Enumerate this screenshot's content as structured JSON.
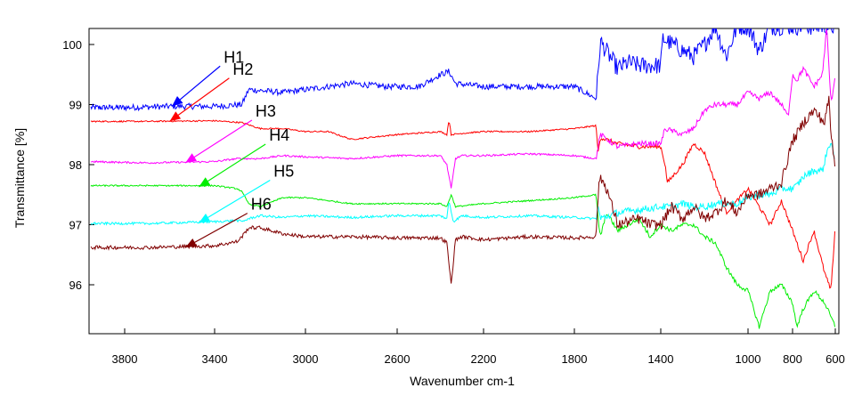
{
  "chart_data": {
    "type": "line",
    "title": "",
    "xlabel": "Wavenumber cm-1",
    "ylabel": "Transmittance [%]",
    "xlim": [
      4000,
      600
    ],
    "ylim": [
      95.2,
      100.3
    ],
    "x_reversed": true,
    "x_ticks": [
      3800,
      3400,
      3000,
      2600,
      2200,
      1800,
      1400,
      1000,
      800,
      600
    ],
    "y_ticks": [
      96,
      97,
      98,
      99,
      100
    ],
    "grid": false,
    "legend": "none",
    "series": [
      {
        "name": "H1",
        "color": "#0000ff",
        "noise": 0.05,
        "x": [
          3990,
          3800,
          3600,
          3400,
          3280,
          3250,
          3100,
          3000,
          2800,
          2650,
          2500,
          2400,
          2360,
          2330,
          2200,
          2000,
          1800,
          1700,
          1690,
          1680,
          1600,
          1550,
          1500,
          1450,
          1400,
          1390,
          1300,
          1250,
          1200,
          1150,
          1100,
          1050,
          1000,
          950,
          900,
          850,
          780,
          700,
          650,
          620,
          600
        ],
        "y": [
          98.95,
          98.95,
          98.97,
          98.97,
          99.0,
          99.25,
          99.2,
          99.25,
          99.35,
          99.3,
          99.3,
          99.5,
          99.55,
          99.35,
          99.3,
          99.3,
          99.3,
          99.1,
          99.5,
          100.05,
          99.6,
          99.7,
          99.65,
          99.65,
          99.65,
          100.1,
          99.9,
          99.8,
          100.0,
          100.3,
          99.8,
          100.3,
          100.3,
          99.9,
          100.3,
          100.3,
          100.3,
          100.3,
          100.3,
          100.3,
          100.3
        ]
      },
      {
        "name": "H2",
        "color": "#ff0000",
        "noise": 0.012,
        "x": [
          3990,
          3700,
          3400,
          3280,
          3200,
          3100,
          3000,
          2900,
          2800,
          2600,
          2400,
          2370,
          2360,
          2350,
          2300,
          2200,
          2000,
          1800,
          1700,
          1690,
          1680,
          1600,
          1500,
          1400,
          1380,
          1370,
          1300,
          1250,
          1200,
          1150,
          1100,
          1000,
          950,
          900,
          850,
          800,
          780,
          750,
          700,
          650,
          620,
          600
        ],
        "y": [
          98.72,
          98.72,
          98.73,
          98.7,
          98.6,
          98.6,
          98.55,
          98.55,
          98.42,
          98.5,
          98.55,
          98.5,
          98.75,
          98.5,
          98.52,
          98.55,
          98.55,
          98.6,
          98.65,
          98.2,
          98.45,
          98.35,
          98.3,
          98.3,
          98.0,
          97.7,
          98.0,
          98.35,
          98.2,
          97.7,
          97.2,
          97.6,
          97.3,
          97.0,
          97.4,
          96.9,
          96.7,
          96.4,
          96.9,
          96.2,
          95.9,
          97.0
        ]
      },
      {
        "name": "H3",
        "color": "#ff00ff",
        "noise": 0.015,
        "x": [
          3990,
          3700,
          3400,
          3300,
          3200,
          3100,
          3000,
          2800,
          2600,
          2400,
          2370,
          2350,
          2330,
          2300,
          2200,
          2000,
          1800,
          1700,
          1680,
          1600,
          1500,
          1400,
          1380,
          1300,
          1250,
          1200,
          1150,
          1100,
          1050,
          1000,
          950,
          900,
          850,
          820,
          800,
          780,
          750,
          700,
          660,
          640,
          620,
          600
        ],
        "y": [
          98.05,
          98.03,
          98.05,
          98.1,
          98.1,
          98.15,
          98.13,
          98.1,
          98.15,
          98.15,
          98.0,
          97.6,
          98.1,
          98.15,
          98.15,
          98.18,
          98.15,
          98.1,
          98.5,
          98.3,
          98.35,
          98.35,
          98.6,
          98.5,
          98.6,
          98.9,
          99.0,
          99.0,
          99.0,
          99.2,
          99.1,
          99.2,
          99.0,
          98.8,
          99.5,
          99.4,
          99.6,
          99.3,
          99.5,
          100.3,
          99.0,
          99.5
        ]
      },
      {
        "name": "H4",
        "color": "#00ee00",
        "noise": 0.012,
        "x": [
          3990,
          3700,
          3400,
          3300,
          3280,
          3250,
          3200,
          3100,
          3000,
          2800,
          2600,
          2400,
          2370,
          2350,
          2330,
          2200,
          2000,
          1800,
          1700,
          1690,
          1680,
          1650,
          1600,
          1500,
          1450,
          1400,
          1350,
          1300,
          1250,
          1200,
          1150,
          1100,
          1050,
          1000,
          950,
          900,
          850,
          800,
          780,
          750,
          700,
          650,
          600
        ],
        "y": [
          97.65,
          97.65,
          97.65,
          97.6,
          97.55,
          97.35,
          97.3,
          97.45,
          97.45,
          97.35,
          97.35,
          97.35,
          97.3,
          97.5,
          97.3,
          97.35,
          97.4,
          97.45,
          97.5,
          97.1,
          96.8,
          97.2,
          96.9,
          97.1,
          96.8,
          97.0,
          96.9,
          97.0,
          97.0,
          96.8,
          96.7,
          96.3,
          96.0,
          95.9,
          95.3,
          95.9,
          96.0,
          95.7,
          95.3,
          95.6,
          95.9,
          95.7,
          95.3
        ]
      },
      {
        "name": "H5",
        "color": "#00ffff",
        "noise": 0.02,
        "x": [
          3990,
          3700,
          3400,
          3300,
          3280,
          3250,
          3200,
          3100,
          3000,
          2800,
          2600,
          2400,
          2370,
          2360,
          2340,
          2300,
          2200,
          2000,
          1800,
          1700,
          1690,
          1680,
          1600,
          1500,
          1400,
          1350,
          1300,
          1250,
          1200,
          1150,
          1100,
          1050,
          1000,
          950,
          900,
          850,
          800,
          780,
          750,
          700,
          660,
          640,
          620,
          600
        ],
        "y": [
          97.02,
          97.02,
          97.05,
          97.07,
          97.05,
          97.1,
          97.15,
          97.12,
          97.15,
          97.12,
          97.15,
          97.15,
          97.1,
          97.4,
          97.05,
          97.15,
          97.12,
          97.15,
          97.12,
          97.1,
          97.3,
          97.1,
          97.2,
          97.25,
          97.3,
          97.3,
          97.35,
          97.3,
          97.3,
          97.35,
          97.35,
          97.35,
          97.45,
          97.5,
          97.5,
          97.6,
          97.6,
          97.65,
          97.8,
          97.9,
          97.9,
          98.2,
          98.4,
          98.0
        ]
      },
      {
        "name": "H6",
        "color": "#800000",
        "noise": 0.03,
        "x": [
          3990,
          3700,
          3400,
          3300,
          3280,
          3250,
          3200,
          3100,
          3000,
          2800,
          2600,
          2400,
          2370,
          2350,
          2330,
          2300,
          2200,
          2000,
          1800,
          1700,
          1690,
          1680,
          1650,
          1600,
          1500,
          1450,
          1400,
          1350,
          1300,
          1250,
          1200,
          1150,
          1100,
          1050,
          1000,
          950,
          900,
          850,
          800,
          780,
          750,
          700,
          650,
          630,
          620,
          600
        ],
        "y": [
          96.62,
          96.62,
          96.65,
          96.72,
          96.8,
          96.95,
          96.95,
          96.85,
          96.8,
          96.8,
          96.78,
          96.78,
          96.7,
          96.0,
          96.75,
          96.8,
          96.75,
          96.8,
          96.78,
          96.8,
          97.5,
          97.8,
          97.6,
          97.0,
          97.1,
          97.0,
          97.0,
          97.3,
          97.1,
          97.3,
          97.1,
          97.2,
          97.4,
          97.2,
          97.5,
          97.5,
          97.6,
          97.7,
          98.4,
          98.5,
          98.7,
          98.9,
          98.7,
          99.1,
          98.5,
          98.0
        ]
      }
    ],
    "annotations": [
      {
        "text": "H1",
        "series": "H1",
        "x": 3590,
        "y": 98.97,
        "label_x": 3360,
        "label_y": 99.7
      },
      {
        "text": "H2",
        "series": "H2",
        "x": 3600,
        "y": 98.72,
        "label_x": 3320,
        "label_y": 99.5
      },
      {
        "text": "H3",
        "series": "H3",
        "x": 3530,
        "y": 98.03,
        "label_x": 3220,
        "label_y": 98.8
      },
      {
        "text": "H4",
        "series": "H4",
        "x": 3470,
        "y": 97.63,
        "label_x": 3160,
        "label_y": 98.4
      },
      {
        "text": "H5",
        "series": "H5",
        "x": 3470,
        "y": 97.03,
        "label_x": 3140,
        "label_y": 97.8
      },
      {
        "text": "H6",
        "series": "H6",
        "x": 3530,
        "y": 96.62,
        "label_x": 3240,
        "label_y": 97.25
      }
    ]
  }
}
